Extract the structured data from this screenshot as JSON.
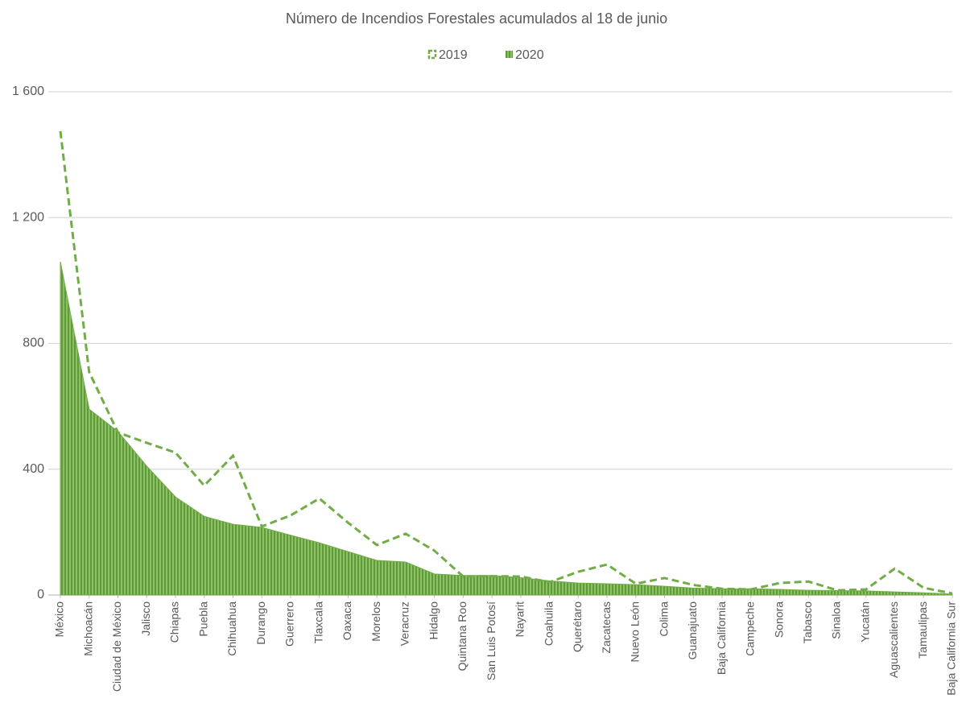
{
  "chart_data": {
    "type": "area",
    "title": "Número de Incendios Forestales acumulados al 18 de junio",
    "categories": [
      "México",
      "Michoacán",
      "Ciudad de México",
      "Jalisco",
      "Chiapas",
      "Puebla",
      "Chihuahua",
      "Durango",
      "Guerrero",
      "Tlaxcala",
      "Oaxaca",
      "Morelos",
      "Veracruz",
      "Hidalgo",
      "Quintana Roo",
      "San Luis Potosí",
      "Nayarit",
      "Coahuila",
      "Querétaro",
      "Zacatecas",
      "Nuevo León",
      "Colima",
      "Guanajuato",
      "Baja California",
      "Campeche",
      "Sonora",
      "Tabasco",
      "Sinaloa",
      "Yucatán",
      "Aguascalientes",
      "Tamaulipas",
      "Baja California Sur"
    ],
    "series": [
      {
        "name": "2019",
        "type": "line",
        "color": "#70ad47",
        "values": [
          1475,
          709,
          517,
          484,
          453,
          348,
          443,
          218,
          253,
          307,
          230,
          159,
          195,
          141,
          59,
          60,
          59,
          41,
          74,
          97,
          36,
          54,
          32,
          20,
          18,
          38,
          43,
          15,
          18,
          84,
          23,
          5
        ]
      },
      {
        "name": "2020",
        "type": "area",
        "color": "#70ad47",
        "values": [
          1060,
          591,
          520,
          410,
          312,
          250,
          225,
          215,
          190,
          166,
          138,
          110,
          105,
          67,
          62,
          62,
          55,
          45,
          38,
          36,
          33,
          28,
          22,
          20,
          20,
          18,
          15,
          14,
          13,
          10,
          7,
          3
        ]
      }
    ],
    "ylim": [
      0,
      1600
    ],
    "yticks": [
      0,
      400,
      800,
      {
        "value": 1200,
        "label": "1 200"
      },
      {
        "value": 1600,
        "label": "1 600"
      }
    ],
    "grid": true,
    "legend": "top"
  }
}
